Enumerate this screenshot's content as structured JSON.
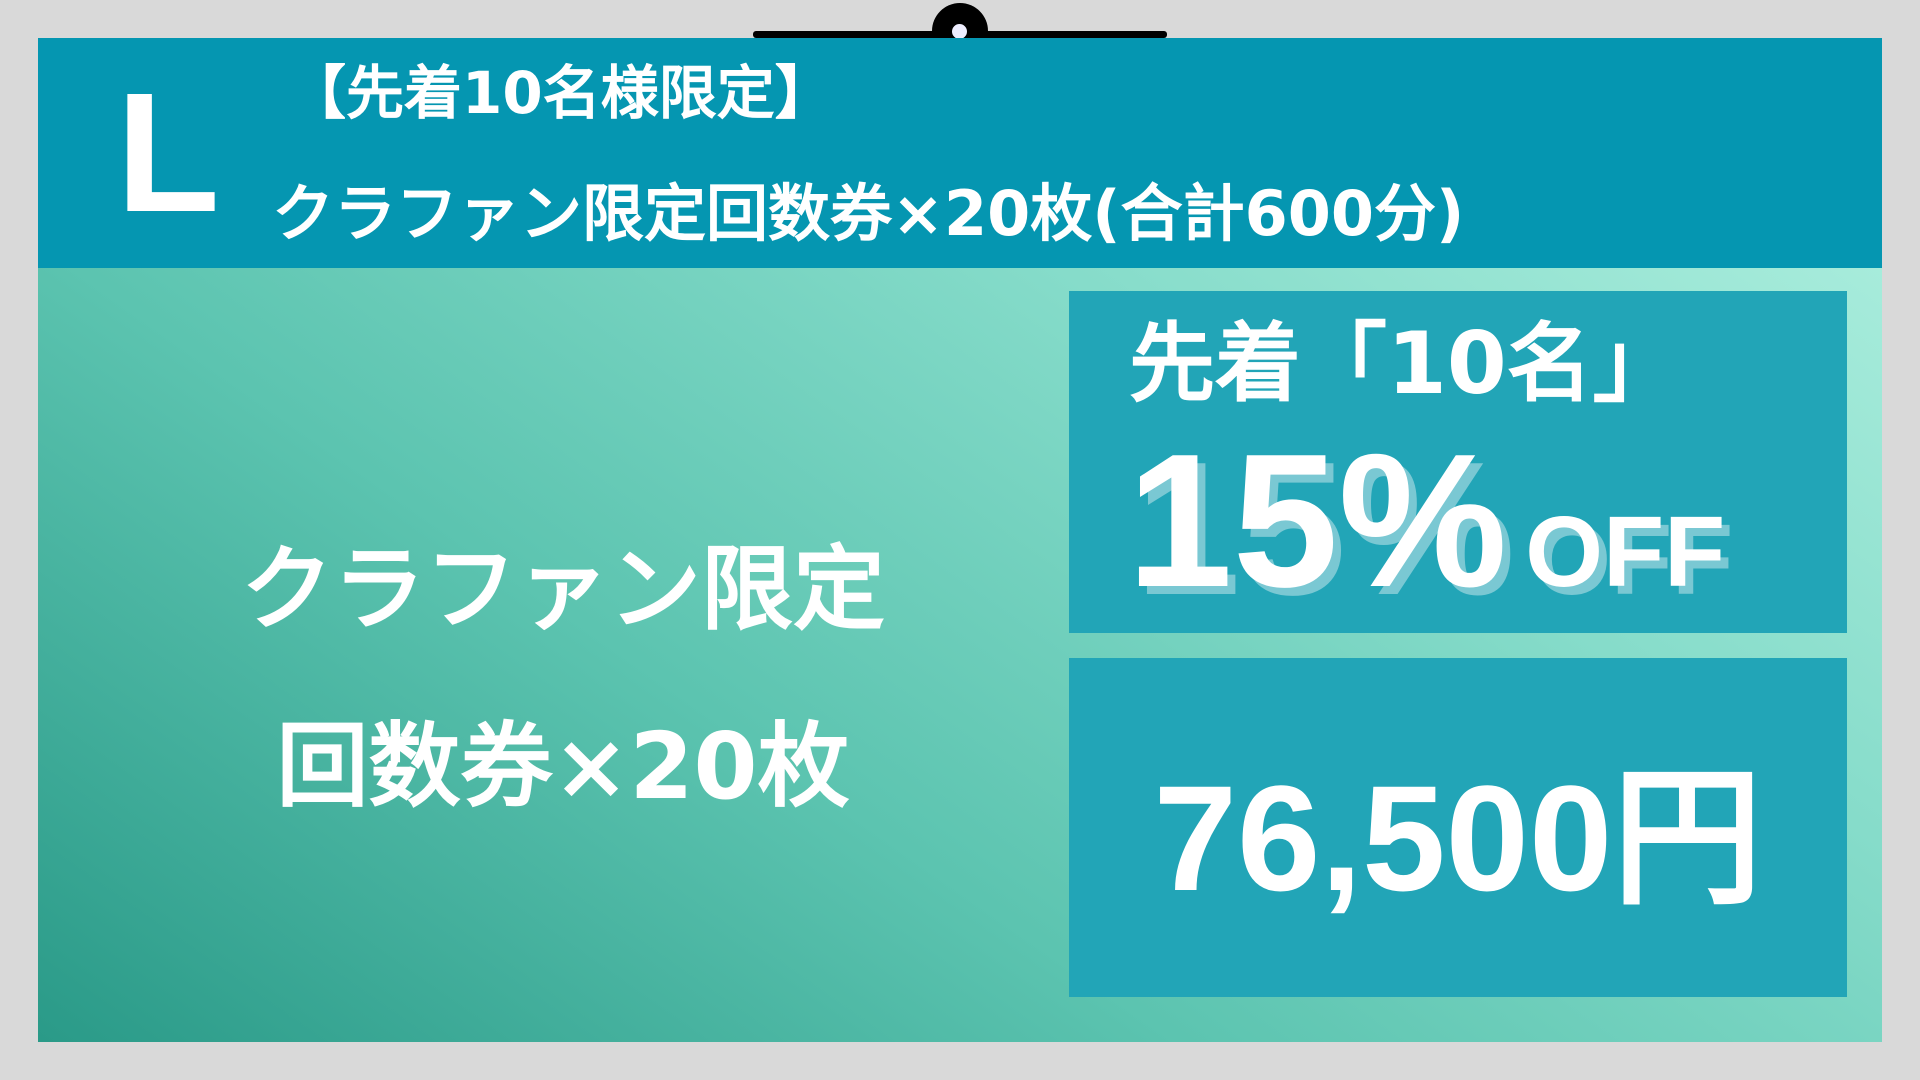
{
  "header": {
    "size_label": "L",
    "line1": "【先着10名様限定】",
    "line2": "クラファン限定回数券×20枚(合計600分)"
  },
  "main": {
    "line1": "クラファン限定",
    "line2": "回数券×20枚"
  },
  "discount": {
    "lead": "先着「10名」",
    "percent": "15%",
    "suffix": "OFF"
  },
  "price": "76,500円",
  "colors": {
    "header": "#0596b1",
    "box": "#22a5b7",
    "background": "#d9d9d9"
  }
}
